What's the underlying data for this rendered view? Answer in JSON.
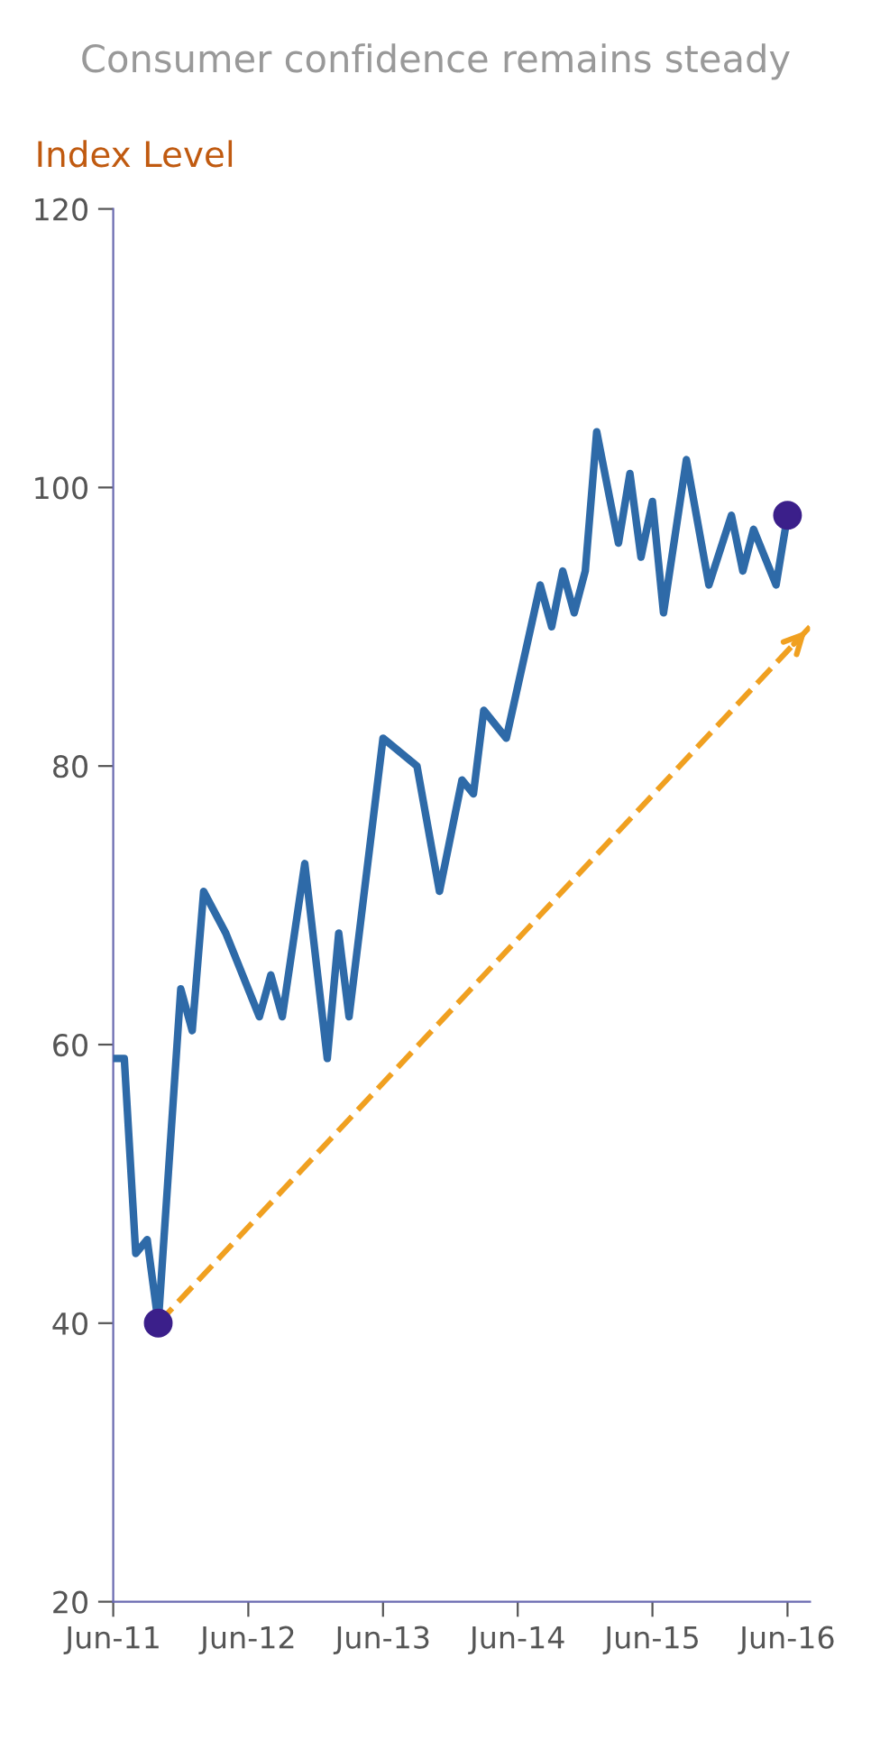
{
  "chart_data": {
    "type": "line",
    "title": "Consumer confidence remains steady",
    "ylabel": "Index Level",
    "xlim": [
      "2011-06",
      "2016-08"
    ],
    "xticks": [
      {
        "value": "2011-06",
        "label": "Jun-11"
      },
      {
        "value": "2012-06",
        "label": "Jun-12"
      },
      {
        "value": "2013-06",
        "label": "Jun-13"
      },
      {
        "value": "2014-06",
        "label": "Jun-14"
      },
      {
        "value": "2015-06",
        "label": "Jun-15"
      },
      {
        "value": "2016-06",
        "label": "Jun-16"
      }
    ],
    "ylim": [
      20,
      120
    ],
    "yticks": [
      20,
      40,
      60,
      80,
      100,
      120
    ],
    "grid": false,
    "legend": false,
    "series": [
      {
        "color": "#2e6aa8",
        "x": [
          "2011-06",
          "2011-07",
          "2011-08",
          "2011-09",
          "2011-10",
          "2011-12",
          "2012-01",
          "2012-02",
          "2012-04",
          "2012-07",
          "2012-08",
          "2012-09",
          "2012-11",
          "2013-01",
          "2013-02",
          "2013-03",
          "2013-06",
          "2013-09",
          "2013-11",
          "2014-01",
          "2014-02",
          "2014-03",
          "2014-05",
          "2014-08",
          "2014-09",
          "2014-10",
          "2014-11",
          "2014-12",
          "2015-01",
          "2015-03",
          "2015-04",
          "2015-05",
          "2015-06",
          "2015-07",
          "2015-09",
          "2015-11",
          "2016-01",
          "2016-02",
          "2016-03",
          "2016-05",
          "2016-06"
        ],
        "values": [
          59,
          59,
          45,
          46,
          40,
          64,
          61,
          71,
          68,
          62,
          65,
          62,
          73,
          59,
          68,
          62,
          82,
          80,
          71,
          79,
          78,
          84,
          82,
          93,
          90,
          94,
          91,
          94,
          104,
          96,
          101,
          95,
          99,
          91,
          102,
          93,
          98,
          94,
          97,
          93,
          98
        ]
      },
      {
        "type": "line",
        "line_style": "dashed",
        "color": "#f0a020",
        "x": [
          "2011-10",
          "2016-08"
        ],
        "values": [
          40,
          90
        ]
      },
      {
        "type": "scatter",
        "marker": "circle",
        "color": "#3b1f8a",
        "x": [
          "2011-10",
          "2016-06"
        ],
        "values": [
          40,
          98
        ]
      }
    ]
  }
}
